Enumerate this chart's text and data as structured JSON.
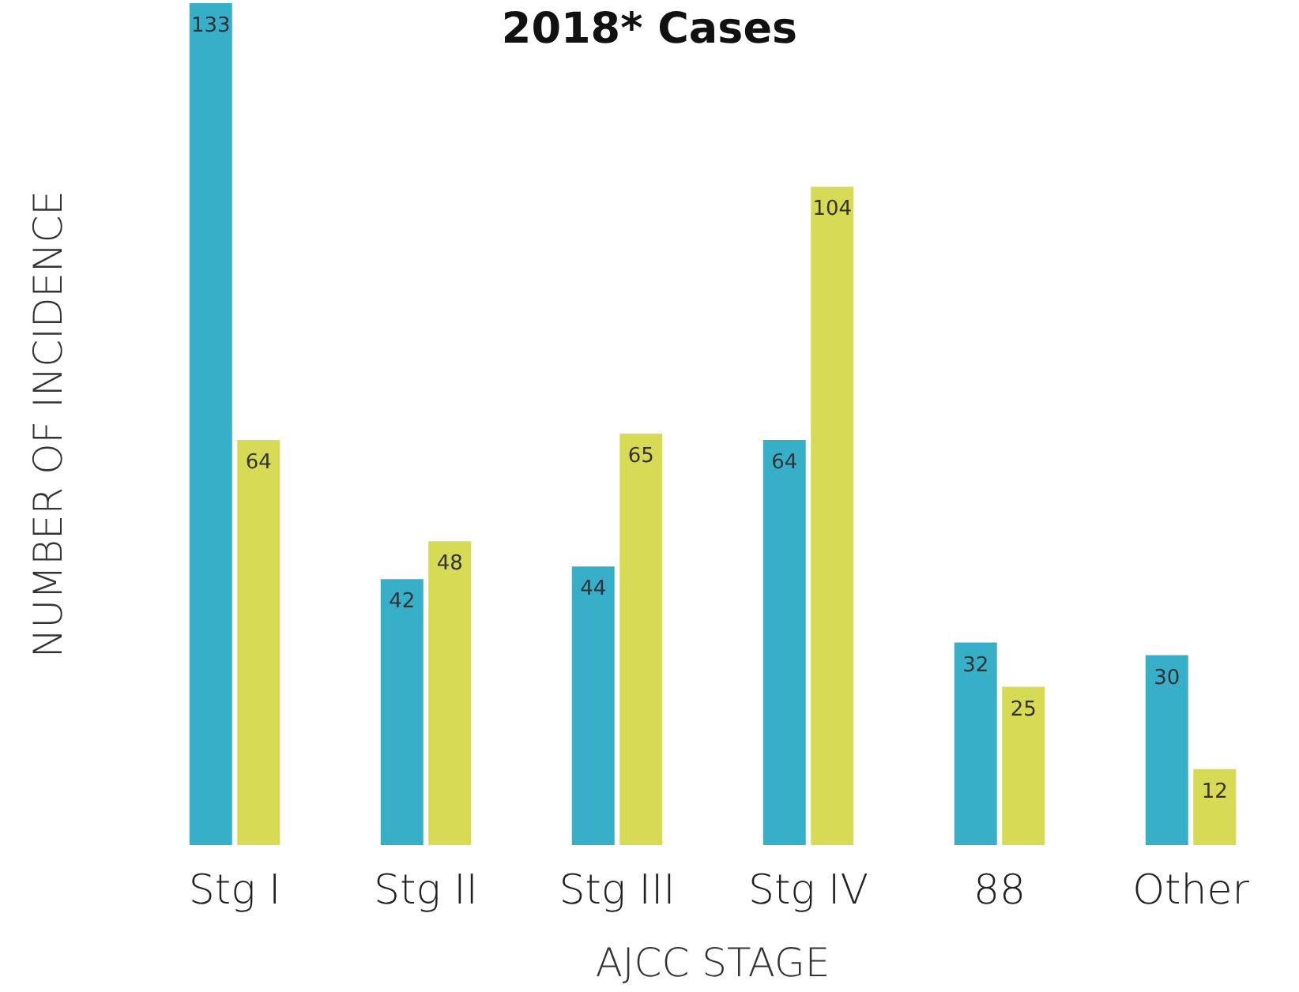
{
  "chart_data": {
    "type": "bar",
    "title": "2018* Cases",
    "xlabel": "AJCC STAGE",
    "ylabel": "NUMBER OF INCIDENCE",
    "categories": [
      "Stg I",
      "Stg II",
      "Stg III",
      "Stg IV",
      "88",
      "Other"
    ],
    "series": [
      {
        "color": "#37afc9",
        "values": [
          133,
          42,
          44,
          64,
          32,
          30
        ]
      },
      {
        "color": "#d6da55",
        "values": [
          64,
          48,
          65,
          104,
          25,
          12
        ]
      }
    ],
    "data_labels": true
  }
}
